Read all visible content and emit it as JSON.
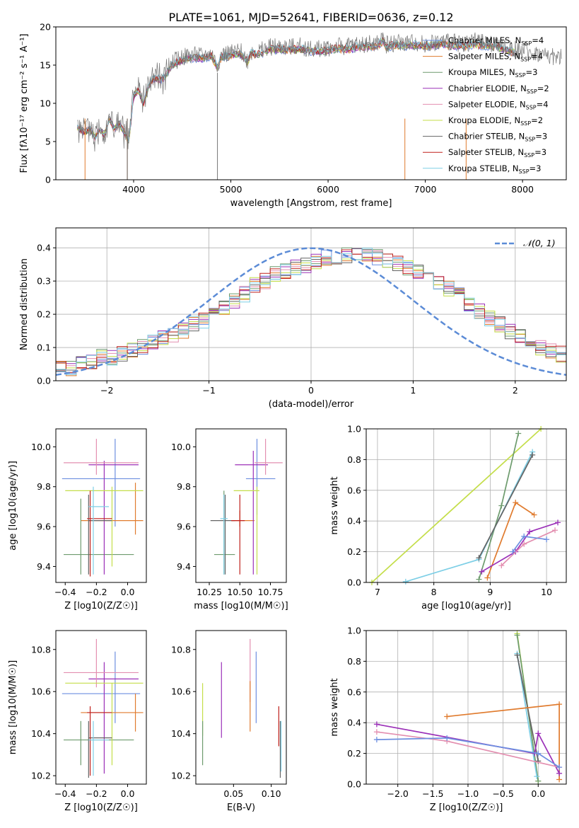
{
  "figure": {
    "title": "PLATE=1061, MJD=52641, FIBERID=0636, z=0.12",
    "series_colors": [
      "#6d8fe0",
      "#e07b2e",
      "#6e9c6e",
      "#9b30b8",
      "#e38fb0",
      "#c4de4a",
      "#646464",
      "#c0201c",
      "#7ecfe6"
    ]
  },
  "chart_data": [
    {
      "type": "line",
      "title": "PLATE=1061, MJD=52641, FIBERID=0636, z=0.12",
      "xlabel": "wavelength [Angstrom, rest frame]",
      "ylabel": "Flux [fλ10⁻¹⁷ erg cm⁻² s⁻¹ A⁻¹]",
      "xlim": [
        3200,
        8450
      ],
      "ylim": [
        0,
        20
      ],
      "xticks": [
        4000,
        5000,
        6000,
        7000,
        8000
      ],
      "yticks": [
        0,
        5,
        10,
        15,
        20
      ],
      "legend_position": "right",
      "observed": {
        "x": [
          3420,
          3500,
          3550,
          3600,
          3650,
          3700,
          3750,
          3800,
          3850,
          3900,
          3950,
          4000,
          4050,
          4100,
          4150,
          4200,
          4300,
          4400,
          4500,
          4600,
          4700,
          4800,
          4862,
          4900,
          5000,
          5100,
          5175,
          5200,
          5300,
          5400,
          5500,
          5600,
          5700,
          5800,
          5900,
          6000,
          6100,
          6200,
          6300,
          6400,
          6500,
          6563,
          6600,
          6700,
          6800,
          6900,
          7000,
          7100,
          7200,
          7300,
          7400,
          7500,
          7600,
          7700,
          7800,
          7900,
          8000,
          8100,
          8200,
          8300,
          8400
        ],
        "y": [
          7.0,
          6.3,
          6.8,
          5.6,
          6.8,
          6.0,
          8.2,
          6.8,
          7.4,
          6.4,
          5.0,
          11.3,
          12.0,
          10.0,
          12.4,
          13.5,
          13.4,
          15.4,
          16.0,
          16.3,
          16.2,
          16.5,
          15.0,
          16.4,
          16.6,
          16.8,
          15.6,
          16.8,
          16.8,
          17.4,
          17.4,
          17.3,
          17.5,
          17.2,
          17.1,
          17.3,
          17.5,
          17.4,
          17.7,
          17.8,
          17.8,
          18.5,
          17.7,
          18.0,
          17.9,
          18.0,
          17.8,
          18.0,
          18.1,
          17.9,
          17.9,
          18.1,
          17.9,
          17.8,
          17.4,
          17.0,
          17.0,
          16.6,
          16.4,
          16.2,
          16.0
        ]
      },
      "series": [
        {
          "name": "Chabrier MILES, N_SSP=4",
          "color": "#6d8fe0"
        },
        {
          "name": "Salpeter MILES, N_SSP=4",
          "color": "#e07b2e"
        },
        {
          "name": "Kroupa MILES, N_SSP=3",
          "color": "#6e9c6e"
        },
        {
          "name": "Chabrier ELODIE, N_SSP=2",
          "color": "#9b30b8"
        },
        {
          "name": "Salpeter ELODIE, N_SSP=4",
          "color": "#e38fb0"
        },
        {
          "name": "Kroupa ELODIE, N_SSP=2",
          "color": "#c4de4a"
        },
        {
          "name": "Chabrier STELIB, N_SSP=3",
          "color": "#646464"
        },
        {
          "name": "Salpeter STELIB, N_SSP=3",
          "color": "#c0201c"
        },
        {
          "name": "Kroupa STELIB, N_SSP=3",
          "color": "#7ecfe6"
        }
      ]
    },
    {
      "type": "histogram",
      "xlabel": "(data-model)/error",
      "ylabel": "Normed distribution",
      "xlim": [
        -2.5,
        2.5
      ],
      "ylim": [
        0,
        0.46
      ],
      "xticks": [
        -2,
        -1,
        0,
        1,
        2
      ],
      "yticks": [
        0.0,
        0.1,
        0.2,
        0.3,
        0.4
      ],
      "grid": true,
      "legend": {
        "label": "N(0,1)",
        "position": "top-right"
      },
      "bins": {
        "start": -2.5,
        "width": 0.1
      },
      "density_shape": [
        0.04,
        0.04,
        0.05,
        0.06,
        0.07,
        0.07,
        0.08,
        0.09,
        0.1,
        0.12,
        0.13,
        0.14,
        0.15,
        0.17,
        0.18,
        0.2,
        0.22,
        0.24,
        0.26,
        0.29,
        0.3,
        0.32,
        0.33,
        0.34,
        0.35,
        0.36,
        0.37,
        0.37,
        0.38,
        0.38,
        0.38,
        0.37,
        0.36,
        0.35,
        0.34,
        0.33,
        0.32,
        0.3,
        0.28,
        0.26,
        0.23,
        0.21,
        0.19,
        0.17,
        0.15,
        0.13,
        0.12,
        0.1,
        0.09,
        0.08
      ]
    },
    {
      "type": "errorbar",
      "xlabel": "Z [log10(Z/Z☉)]",
      "ylabel": "age  [log10(age/yr)]",
      "xlim": [
        -0.46,
        0.12
      ],
      "ylim": [
        9.32,
        10.09
      ],
      "xticks": [
        -0.4,
        -0.2,
        0.0
      ],
      "yticks": [
        9.4,
        9.6,
        9.8,
        10.0
      ],
      "points": [
        {
          "c": "#6d8fe0",
          "x": -0.08,
          "y": 9.84,
          "xe": [
            -0.42,
            0.08
          ],
          "ye": [
            9.6,
            10.04
          ]
        },
        {
          "c": "#e07b2e",
          "x": 0.05,
          "y": 9.63,
          "xe": [
            -0.3,
            0.1
          ],
          "ye": [
            9.56,
            9.82
          ]
        },
        {
          "c": "#6e9c6e",
          "x": -0.3,
          "y": 9.46,
          "xe": [
            -0.41,
            0.04
          ],
          "ye": [
            9.36,
            9.74
          ]
        },
        {
          "c": "#9b30b8",
          "x": -0.15,
          "y": 9.91,
          "xe": [
            -0.25,
            0.07
          ],
          "ye": [
            9.36,
            9.93
          ]
        },
        {
          "c": "#e38fb0",
          "x": -0.2,
          "y": 9.92,
          "xe": [
            -0.41,
            0.07
          ],
          "ye": [
            9.86,
            10.04
          ]
        },
        {
          "c": "#c4de4a",
          "x": -0.1,
          "y": 9.78,
          "xe": [
            -0.4,
            0.1
          ],
          "ye": [
            9.4,
            9.8
          ]
        },
        {
          "c": "#646464",
          "x": -0.25,
          "y": 9.63,
          "xe": [
            -0.25,
            -0.1
          ],
          "ye": [
            9.36,
            9.76
          ]
        },
        {
          "c": "#c0201c",
          "x": -0.24,
          "y": 9.64,
          "xe": [
            -0.26,
            -0.1
          ],
          "ye": [
            9.35,
            9.78
          ]
        },
        {
          "c": "#7ecfe6",
          "x": -0.22,
          "y": 9.7,
          "xe": [
            -0.25,
            -0.12
          ],
          "ye": [
            9.36,
            9.8
          ]
        }
      ]
    },
    {
      "type": "errorbar",
      "xlabel": "mass [log10(M/M☉)]",
      "ylabel": "",
      "xlim": [
        10.14,
        10.88
      ],
      "ylim": [
        9.32,
        10.09
      ],
      "xticks": [
        10.25,
        10.5,
        10.75
      ],
      "yticks": [
        9.4,
        9.6,
        9.8,
        10.0
      ],
      "points": [
        {
          "c": "#6d8fe0",
          "x": 10.64,
          "y": 9.84,
          "xe": [
            10.55,
            10.79
          ],
          "ye": [
            9.66,
            10.04
          ]
        },
        {
          "c": "#e07b2e",
          "x": 10.5,
          "y": 9.63,
          "xe": [
            10.43,
            10.62
          ],
          "ye": [
            9.6,
            9.68
          ]
        },
        {
          "c": "#6e9c6e",
          "x": 10.37,
          "y": 9.46,
          "xe": [
            10.29,
            10.46
          ],
          "ye": [
            9.36,
            9.78
          ]
        },
        {
          "c": "#9b30b8",
          "x": 10.61,
          "y": 9.91,
          "xe": [
            10.46,
            10.73
          ],
          "ye": [
            9.36,
            9.98
          ]
        },
        {
          "c": "#e38fb0",
          "x": 10.71,
          "y": 9.92,
          "xe": [
            10.62,
            10.85
          ],
          "ye": [
            9.86,
            10.04
          ]
        },
        {
          "c": "#c4de4a",
          "x": 10.64,
          "y": 9.78,
          "xe": [
            10.45,
            10.66
          ],
          "ye": [
            9.36,
            9.8
          ]
        },
        {
          "c": "#646464",
          "x": 10.38,
          "y": 9.63,
          "xe": [
            10.26,
            10.46
          ],
          "ye": [
            9.36,
            9.76
          ]
        },
        {
          "c": "#c0201c",
          "x": 10.5,
          "y": 9.63,
          "xe": [
            10.43,
            10.54
          ],
          "ye": [
            9.36,
            9.76
          ]
        },
        {
          "c": "#7ecfe6",
          "x": 10.37,
          "y": 9.64,
          "xe": [
            10.34,
            10.4
          ],
          "ye": [
            9.36,
            9.76
          ]
        }
      ]
    },
    {
      "type": "line",
      "xlabel": "age  [log10(age/yr)]",
      "ylabel": "mass weight",
      "xlim": [
        6.8,
        10.35
      ],
      "ylim": [
        0,
        1
      ],
      "xticks": [
        7,
        8,
        9,
        10
      ],
      "yticks": [
        0.0,
        0.2,
        0.4,
        0.6,
        0.8,
        1.0
      ],
      "grid": true,
      "series": [
        {
          "color": "#c4de4a",
          "x": [
            6.9,
            9.9
          ],
          "y": [
            0.0,
            1.0
          ]
        },
        {
          "color": "#6e9c6e",
          "x": [
            8.8,
            9.2,
            9.5
          ],
          "y": [
            0.02,
            0.5,
            0.97
          ]
        },
        {
          "color": "#7ecfe6",
          "x": [
            7.5,
            8.8,
            9.75
          ],
          "y": [
            0.005,
            0.15,
            0.85
          ]
        },
        {
          "color": "#646464",
          "x": [
            8.8,
            9.75
          ],
          "y": [
            0.16,
            0.83
          ]
        },
        {
          "color": "#e07b2e",
          "x": [
            8.95,
            9.45,
            9.78
          ],
          "y": [
            0.03,
            0.52,
            0.44
          ]
        },
        {
          "color": "#9b30b8",
          "x": [
            8.85,
            9.45,
            9.7,
            10.2
          ],
          "y": [
            0.07,
            0.2,
            0.33,
            0.39
          ]
        },
        {
          "color": "#e38fb0",
          "x": [
            9.2,
            9.6,
            10.15
          ],
          "y": [
            0.11,
            0.25,
            0.34
          ]
        },
        {
          "color": "#6d8fe0",
          "x": [
            9.4,
            9.6,
            10.0
          ],
          "y": [
            0.2,
            0.3,
            0.28
          ]
        }
      ]
    },
    {
      "type": "errorbar",
      "xlabel": "Z [log10(Z/Z☉)]",
      "ylabel": "mass [log10(M/M☉)]",
      "xlim": [
        -0.46,
        0.12
      ],
      "ylim": [
        10.16,
        10.89
      ],
      "xticks": [
        -0.4,
        -0.2,
        0.0
      ],
      "yticks": [
        10.2,
        10.4,
        10.6,
        10.8
      ],
      "points": [
        {
          "c": "#6d8fe0",
          "x": -0.08,
          "y": 10.59,
          "xe": [
            -0.42,
            0.08
          ],
          "ye": [
            10.45,
            10.79
          ]
        },
        {
          "c": "#e07b2e",
          "x": 0.05,
          "y": 10.5,
          "xe": [
            -0.3,
            0.1
          ],
          "ye": [
            10.41,
            10.59
          ]
        },
        {
          "c": "#6e9c6e",
          "x": -0.3,
          "y": 10.37,
          "xe": [
            -0.41,
            0.04
          ],
          "ye": [
            10.25,
            10.46
          ]
        },
        {
          "c": "#9b30b8",
          "x": -0.15,
          "y": 10.66,
          "xe": [
            -0.25,
            0.07
          ],
          "ye": [
            10.21,
            10.74
          ]
        },
        {
          "c": "#e38fb0",
          "x": -0.2,
          "y": 10.69,
          "xe": [
            -0.41,
            0.07
          ],
          "ye": [
            10.62,
            10.85
          ]
        },
        {
          "c": "#c4de4a",
          "x": -0.1,
          "y": 10.64,
          "xe": [
            -0.4,
            0.1
          ],
          "ye": [
            10.25,
            10.64
          ]
        },
        {
          "c": "#646464",
          "x": -0.25,
          "y": 10.38,
          "xe": [
            -0.25,
            -0.1
          ],
          "ye": [
            10.19,
            10.46
          ]
        },
        {
          "c": "#c0201c",
          "x": -0.24,
          "y": 10.5,
          "xe": [
            -0.26,
            -0.1
          ],
          "ye": [
            10.2,
            10.53
          ]
        },
        {
          "c": "#7ecfe6",
          "x": -0.22,
          "y": 10.37,
          "xe": [
            -0.25,
            -0.12
          ],
          "ye": [
            10.2,
            10.46
          ]
        }
      ]
    },
    {
      "type": "errorbar",
      "xlabel": "E(B-V)",
      "ylabel": "",
      "xlim": [
        0.0,
        0.12
      ],
      "ylim": [
        10.16,
        10.89
      ],
      "xticks": [
        0.05,
        0.1
      ],
      "yticks": [
        10.2,
        10.4,
        10.6,
        10.8
      ],
      "points": [
        {
          "c": "#c4de4a",
          "x": 0.009,
          "ye": [
            10.39,
            10.64
          ]
        },
        {
          "c": "#6e9c6e",
          "x": 0.009,
          "ye": [
            10.25,
            10.46
          ]
        },
        {
          "c": "#9b30b8",
          "x": 0.034,
          "ye": [
            10.38,
            10.74
          ]
        },
        {
          "c": "#e38fb0",
          "x": 0.072,
          "ye": [
            10.55,
            10.85
          ]
        },
        {
          "c": "#e07b2e",
          "x": 0.072,
          "ye": [
            10.41,
            10.65
          ]
        },
        {
          "c": "#6d8fe0",
          "x": 0.08,
          "ye": [
            10.45,
            10.79
          ]
        },
        {
          "c": "#c0201c",
          "x": 0.11,
          "ye": [
            10.34,
            10.53
          ]
        },
        {
          "c": "#646464",
          "x": 0.112,
          "ye": [
            10.19,
            10.46
          ]
        },
        {
          "c": "#7ecfe6",
          "x": 0.113,
          "ye": [
            10.22,
            10.46
          ]
        }
      ]
    },
    {
      "type": "line",
      "xlabel": "Z [log10(Z/Z☉)]",
      "ylabel": "mass weight",
      "xlim": [
        -2.45,
        0.4
      ],
      "ylim": [
        0,
        1
      ],
      "xticks": [
        -2.0,
        -1.5,
        -1.0,
        -0.5,
        0.0
      ],
      "yticks": [
        0.0,
        0.2,
        0.4,
        0.6,
        0.8,
        1.0
      ],
      "grid": true,
      "series": [
        {
          "color": "#c4de4a",
          "x": [
            -0.3,
            0.0
          ],
          "y": [
            0.98,
            0.02
          ]
        },
        {
          "color": "#6e9c6e",
          "x": [
            -0.3,
            0.0
          ],
          "y": [
            0.97,
            0.02
          ]
        },
        {
          "color": "#7ecfe6",
          "x": [
            -0.3,
            -0.02
          ],
          "y": [
            0.85,
            0.05
          ]
        },
        {
          "color": "#646464",
          "x": [
            -0.3,
            0.0
          ],
          "y": [
            0.84,
            0.15
          ]
        },
        {
          "color": "#e07b2e",
          "x": [
            -1.3,
            0.3,
            0.3
          ],
          "y": [
            0.44,
            0.52,
            0.03
          ]
        },
        {
          "color": "#9b30b8",
          "x": [
            -2.3,
            -0.05,
            0.0,
            0.3
          ],
          "y": [
            0.39,
            0.2,
            0.33,
            0.07
          ]
        },
        {
          "color": "#e38fb0",
          "x": [
            -2.3,
            -1.3,
            0.3
          ],
          "y": [
            0.34,
            0.28,
            0.11
          ]
        },
        {
          "color": "#6d8fe0",
          "x": [
            -2.3,
            -1.3,
            0.0,
            0.3
          ],
          "y": [
            0.29,
            0.3,
            0.2,
            0.11
          ]
        }
      ]
    }
  ]
}
